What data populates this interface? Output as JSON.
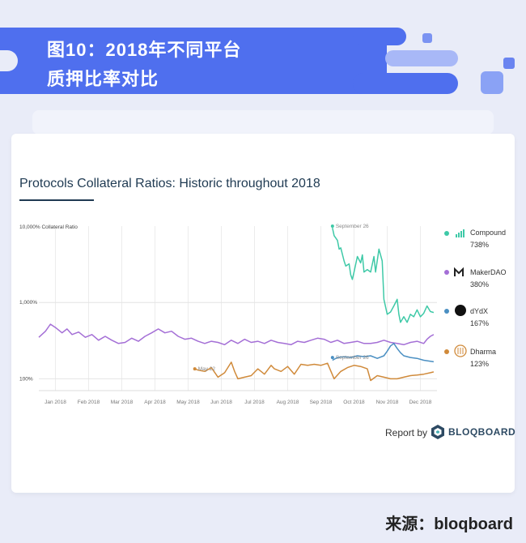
{
  "header": {
    "line1": "图10：2018年不同平台",
    "line2": "质押比率对比"
  },
  "chart_data": {
    "type": "line",
    "title": "Protocols Collateral Ratios: Historic throughout 2018",
    "ylabel": "10,000% Collateral Ratio",
    "yscale": "log",
    "ylim": [
      70,
      10000
    ],
    "yticks": [
      {
        "value": 1000,
        "label": "1,000%"
      },
      {
        "value": 100,
        "label": "100%"
      }
    ],
    "x_ticks": [
      "Jan 2018",
      "Feb 2018",
      "Mar 2018",
      "Apr 2018",
      "May 2018",
      "Jun 2018",
      "Jul 2018",
      "Aug 2018",
      "Sep 2018",
      "Oct 2018",
      "Nov 2018",
      "Dec 2018"
    ],
    "xlim": [
      0,
      12
    ],
    "grid": true,
    "legend": "right",
    "annotations": [
      {
        "text": "September 26",
        "x": 8.85,
        "y": 10000,
        "series": "Compound"
      },
      {
        "text": "September 26",
        "x": 8.85,
        "y": 190,
        "series": "dYdX"
      },
      {
        "text": "May 22",
        "x": 4.7,
        "y": 135,
        "series": "Dharma"
      }
    ],
    "series": [
      {
        "name": "Compound",
        "value_label": "738%",
        "color": "#3ec9a7",
        "icon": "compound-icon",
        "points": [
          [
            8.85,
            9500
          ],
          [
            8.9,
            7500
          ],
          [
            9.0,
            6500
          ],
          [
            9.05,
            5000
          ],
          [
            9.1,
            5200
          ],
          [
            9.2,
            3500
          ],
          [
            9.25,
            3000
          ],
          [
            9.35,
            3200
          ],
          [
            9.4,
            2300
          ],
          [
            9.45,
            2000
          ],
          [
            9.5,
            2500
          ],
          [
            9.6,
            4000
          ],
          [
            9.7,
            3300
          ],
          [
            9.75,
            4200
          ],
          [
            9.8,
            2500
          ],
          [
            9.9,
            2700
          ],
          [
            10.0,
            2500
          ],
          [
            10.1,
            4000
          ],
          [
            10.15,
            2500
          ],
          [
            10.25,
            5000
          ],
          [
            10.35,
            3500
          ],
          [
            10.4,
            1100
          ],
          [
            10.5,
            700
          ],
          [
            10.6,
            750
          ],
          [
            10.7,
            900
          ],
          [
            10.8,
            1100
          ],
          [
            10.85,
            700
          ],
          [
            10.9,
            550
          ],
          [
            11.0,
            650
          ],
          [
            11.1,
            550
          ],
          [
            11.2,
            700
          ],
          [
            11.3,
            650
          ],
          [
            11.4,
            800
          ],
          [
            11.5,
            650
          ],
          [
            11.6,
            720
          ],
          [
            11.7,
            900
          ],
          [
            11.8,
            760
          ],
          [
            11.9,
            738
          ]
        ]
      },
      {
        "name": "MakerDAO",
        "value_label": "380%",
        "color": "#a46fd6",
        "icon": "makerdao-icon",
        "points": [
          [
            0,
            350
          ],
          [
            0.2,
            420
          ],
          [
            0.35,
            520
          ],
          [
            0.5,
            470
          ],
          [
            0.7,
            400
          ],
          [
            0.85,
            450
          ],
          [
            1.0,
            380
          ],
          [
            1.2,
            410
          ],
          [
            1.4,
            350
          ],
          [
            1.6,
            380
          ],
          [
            1.8,
            320
          ],
          [
            2.0,
            360
          ],
          [
            2.2,
            320
          ],
          [
            2.4,
            290
          ],
          [
            2.6,
            300
          ],
          [
            2.8,
            340
          ],
          [
            3.0,
            310
          ],
          [
            3.2,
            360
          ],
          [
            3.4,
            400
          ],
          [
            3.6,
            450
          ],
          [
            3.8,
            400
          ],
          [
            4.0,
            420
          ],
          [
            4.2,
            360
          ],
          [
            4.4,
            330
          ],
          [
            4.6,
            340
          ],
          [
            4.8,
            310
          ],
          [
            5.0,
            290
          ],
          [
            5.2,
            310
          ],
          [
            5.4,
            300
          ],
          [
            5.6,
            280
          ],
          [
            5.8,
            320
          ],
          [
            6.0,
            290
          ],
          [
            6.2,
            330
          ],
          [
            6.4,
            300
          ],
          [
            6.6,
            310
          ],
          [
            6.8,
            290
          ],
          [
            7.0,
            320
          ],
          [
            7.2,
            300
          ],
          [
            7.4,
            290
          ],
          [
            7.6,
            280
          ],
          [
            7.8,
            310
          ],
          [
            8.0,
            300
          ],
          [
            8.2,
            320
          ],
          [
            8.4,
            340
          ],
          [
            8.6,
            330
          ],
          [
            8.8,
            300
          ],
          [
            9.0,
            320
          ],
          [
            9.2,
            290
          ],
          [
            9.4,
            300
          ],
          [
            9.6,
            310
          ],
          [
            9.8,
            290
          ],
          [
            10.0,
            290
          ],
          [
            10.2,
            300
          ],
          [
            10.4,
            320
          ],
          [
            10.6,
            300
          ],
          [
            10.8,
            290
          ],
          [
            11.0,
            280
          ],
          [
            11.2,
            300
          ],
          [
            11.4,
            310
          ],
          [
            11.6,
            290
          ],
          [
            11.7,
            330
          ],
          [
            11.8,
            360
          ],
          [
            11.9,
            380
          ]
        ]
      },
      {
        "name": "dYdX",
        "value_label": "167%",
        "color": "#4a8fc2",
        "icon": "dydx-icon",
        "points": [
          [
            8.85,
            175
          ],
          [
            9.0,
            190
          ],
          [
            9.2,
            195
          ],
          [
            9.4,
            190
          ],
          [
            9.6,
            200
          ],
          [
            9.8,
            195
          ],
          [
            10.0,
            200
          ],
          [
            10.2,
            185
          ],
          [
            10.4,
            200
          ],
          [
            10.5,
            230
          ],
          [
            10.6,
            270
          ],
          [
            10.7,
            290
          ],
          [
            10.8,
            250
          ],
          [
            10.9,
            220
          ],
          [
            11.0,
            200
          ],
          [
            11.2,
            190
          ],
          [
            11.4,
            185
          ],
          [
            11.6,
            175
          ],
          [
            11.8,
            170
          ],
          [
            11.9,
            167
          ]
        ]
      },
      {
        "name": "Dharma",
        "value_label": "123%",
        "color": "#d08a3a",
        "icon": "dharma-icon",
        "points": [
          [
            4.7,
            135
          ],
          [
            4.8,
            130
          ],
          [
            5.0,
            125
          ],
          [
            5.2,
            140
          ],
          [
            5.4,
            105
          ],
          [
            5.6,
            120
          ],
          [
            5.8,
            165
          ],
          [
            5.9,
            125
          ],
          [
            6.0,
            100
          ],
          [
            6.2,
            105
          ],
          [
            6.4,
            110
          ],
          [
            6.6,
            135
          ],
          [
            6.8,
            115
          ],
          [
            7.0,
            150
          ],
          [
            7.1,
            135
          ],
          [
            7.3,
            125
          ],
          [
            7.5,
            145
          ],
          [
            7.7,
            115
          ],
          [
            7.9,
            155
          ],
          [
            8.1,
            150
          ],
          [
            8.3,
            155
          ],
          [
            8.5,
            150
          ],
          [
            8.7,
            160
          ],
          [
            8.9,
            100
          ],
          [
            9.1,
            125
          ],
          [
            9.3,
            140
          ],
          [
            9.5,
            150
          ],
          [
            9.7,
            145
          ],
          [
            9.9,
            135
          ],
          [
            10.0,
            95
          ],
          [
            10.2,
            110
          ],
          [
            10.4,
            105
          ],
          [
            10.6,
            100
          ],
          [
            10.8,
            100
          ],
          [
            11.0,
            105
          ],
          [
            11.2,
            110
          ],
          [
            11.4,
            112
          ],
          [
            11.6,
            115
          ],
          [
            11.8,
            120
          ],
          [
            11.9,
            123
          ]
        ]
      }
    ]
  },
  "footer": {
    "report_by": "Report by",
    "brand": "BLOQBOARD",
    "source": "来源：bloqboard"
  }
}
